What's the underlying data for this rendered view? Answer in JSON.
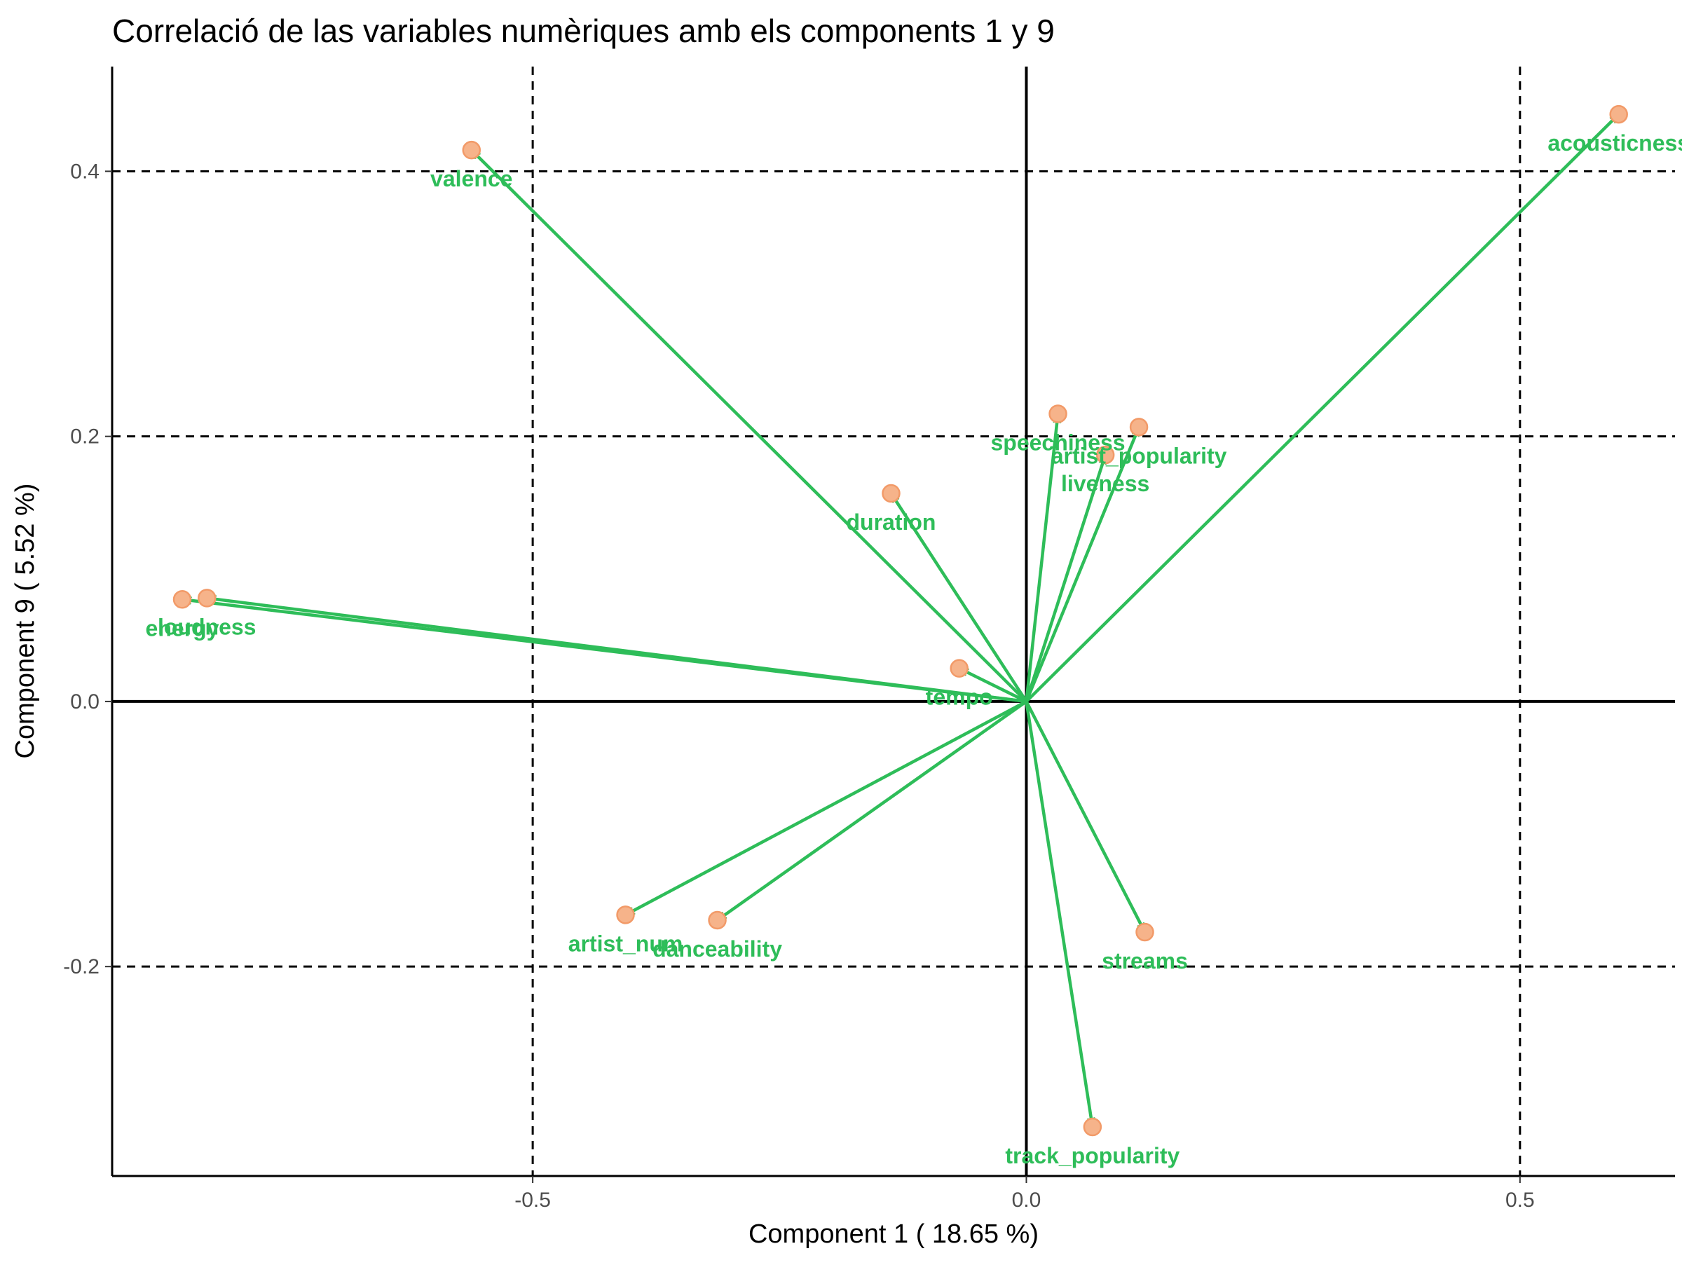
{
  "chart_data": {
    "type": "scatter",
    "subtype": "pca-correlation-circle",
    "title": "Correlació de las variables numèriques amb els components 1 y 9",
    "xlabel": "Component 1 ( 18.65 %)",
    "ylabel": "Component 9 ( 5.52 %)",
    "xlim": [
      -0.926,
      0.657
    ],
    "ylim": [
      -0.358,
      0.479
    ],
    "x_ticks": [
      -0.5,
      0.0,
      0.5
    ],
    "x_tick_labels": [
      "-0.5",
      "0.0",
      "0.5"
    ],
    "y_ticks": [
      -0.2,
      0.0,
      0.2,
      0.4
    ],
    "y_tick_labels": [
      "-0.2",
      "0.0",
      "0.2",
      "0.4"
    ],
    "grid": "dashed reference lines at ticks",
    "legend": "none",
    "colors": {
      "arrow": "#2ebd59",
      "label": "#2ebd59",
      "point_fill": "#f6b38a",
      "point_stroke": "#f29a68",
      "axis": "#000000",
      "grid": "#000000"
    },
    "variables": [
      {
        "name": "acousticness",
        "x": 0.6,
        "y": 0.443
      },
      {
        "name": "valence",
        "x": -0.562,
        "y": 0.416
      },
      {
        "name": "speechiness",
        "x": 0.032,
        "y": 0.217
      },
      {
        "name": "artist_popularity",
        "x": 0.114,
        "y": 0.207
      },
      {
        "name": "liveness",
        "x": 0.08,
        "y": 0.186
      },
      {
        "name": "duration",
        "x": -0.137,
        "y": 0.157
      },
      {
        "name": "loudness",
        "x": -0.83,
        "y": 0.078
      },
      {
        "name": "energy",
        "x": -0.855,
        "y": 0.077
      },
      {
        "name": "tempo",
        "x": -0.068,
        "y": 0.025
      },
      {
        "name": "artist_num",
        "x": -0.406,
        "y": -0.161
      },
      {
        "name": "danceability",
        "x": -0.313,
        "y": -0.165
      },
      {
        "name": "streams",
        "x": 0.12,
        "y": -0.174
      },
      {
        "name": "track_popularity",
        "x": 0.067,
        "y": -0.321
      }
    ]
  }
}
